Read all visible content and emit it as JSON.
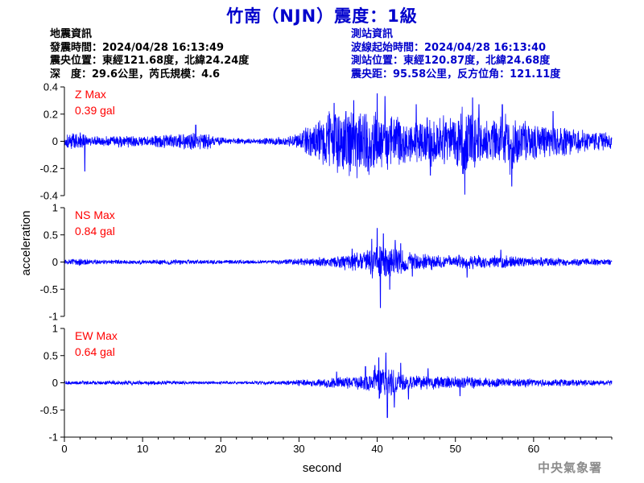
{
  "title": "竹南（NJN）震度：1級",
  "event_info": {
    "heading": "地震資訊",
    "origin_time": "發震時間：2024/04/28 16:13:49",
    "epicenter": "震央位置：東經121.68度，北緯24.24度",
    "depth_magnitude": "深　度：29.6公里，芮氏規模：4.6"
  },
  "station_info": {
    "heading": "測站資訊",
    "wave_start": "波線起始時間：2024/04/28 16:13:40",
    "location": "測站位置：東經120.87度，北緯24.68度",
    "distance_azimuth": "震央距：95.58公里，反方位角：121.11度"
  },
  "footer": "中央氣象署",
  "colors": {
    "title": "#0000cc",
    "trace": "#0000ff",
    "max_label": "#ff0000",
    "axis": "#000000"
  },
  "chart_data": {
    "type": "line",
    "xlabel": "second",
    "ylabel": "acceleration",
    "xlim": [
      0,
      70
    ],
    "xticks": [
      0,
      10,
      20,
      30,
      40,
      50,
      60
    ],
    "grid": false,
    "panels": [
      {
        "name": "Z",
        "max_label": "Z Max",
        "max_value": "0.39 gal",
        "ylim": [
          -0.4,
          0.4
        ],
        "yticks": [
          -0.4,
          -0.2,
          0,
          0.2,
          0.4
        ],
        "ytick_labels": [
          "-0.4",
          "-0.2",
          "0",
          "0.2",
          "0.4"
        ],
        "peak_amplitude": 0.39,
        "envelope": [
          [
            0,
            0.06
          ],
          [
            2,
            0.08
          ],
          [
            3,
            0.04
          ],
          [
            8,
            0.05
          ],
          [
            10,
            0.04
          ],
          [
            14,
            0.06
          ],
          [
            16,
            0.07
          ],
          [
            18,
            0.07
          ],
          [
            20,
            0.03
          ],
          [
            24,
            0.02
          ],
          [
            26,
            0.03
          ],
          [
            27,
            0.04
          ],
          [
            28,
            0.03
          ],
          [
            30,
            0.06
          ],
          [
            31,
            0.14
          ],
          [
            32,
            0.15
          ],
          [
            33,
            0.2
          ],
          [
            34,
            0.24
          ],
          [
            35,
            0.26
          ],
          [
            36,
            0.25
          ],
          [
            37,
            0.29
          ],
          [
            38,
            0.28
          ],
          [
            40,
            0.25
          ],
          [
            41,
            0.24
          ],
          [
            42,
            0.22
          ],
          [
            44,
            0.18
          ],
          [
            46,
            0.19
          ],
          [
            48,
            0.22
          ],
          [
            50,
            0.22
          ],
          [
            51,
            0.3
          ],
          [
            52,
            0.26
          ],
          [
            54,
            0.16
          ],
          [
            56,
            0.24
          ],
          [
            57,
            0.26
          ],
          [
            58,
            0.16
          ],
          [
            60,
            0.17
          ],
          [
            62,
            0.12
          ],
          [
            64,
            0.12
          ],
          [
            66,
            0.09
          ],
          [
            68,
            0.08
          ],
          [
            70,
            0.06
          ]
        ],
        "spikes": [
          [
            34.5,
            0.28
          ],
          [
            36.0,
            0.22
          ],
          [
            37.0,
            0.3
          ],
          [
            38.8,
            -0.22
          ],
          [
            40.0,
            0.35
          ],
          [
            41.0,
            0.33
          ],
          [
            45.0,
            0.27
          ],
          [
            46.8,
            -0.25
          ],
          [
            51.2,
            -0.39
          ],
          [
            52.2,
            0.32
          ],
          [
            53.0,
            0.27
          ],
          [
            56.0,
            0.27
          ],
          [
            57.2,
            -0.33
          ],
          [
            62.5,
            0.22
          ],
          [
            2.6,
            -0.22
          ],
          [
            16.8,
            0.12
          ]
        ]
      },
      {
        "name": "NS",
        "max_label": "NS Max",
        "max_value": "0.84 gal",
        "ylim": [
          -1,
          1
        ],
        "yticks": [
          -1,
          -0.5,
          0,
          0.5,
          1
        ],
        "ytick_labels": [
          "-1",
          "-0.5",
          "0",
          "0.5",
          "1"
        ],
        "peak_amplitude": 0.84,
        "envelope": [
          [
            0,
            0.05
          ],
          [
            2,
            0.07
          ],
          [
            3,
            0.05
          ],
          [
            10,
            0.04
          ],
          [
            14,
            0.06
          ],
          [
            16,
            0.04
          ],
          [
            26,
            0.04
          ],
          [
            28,
            0.05
          ],
          [
            30,
            0.07
          ],
          [
            33,
            0.1
          ],
          [
            35,
            0.13
          ],
          [
            37,
            0.18
          ],
          [
            38,
            0.22
          ],
          [
            39,
            0.3
          ],
          [
            40,
            0.38
          ],
          [
            41,
            0.34
          ],
          [
            42,
            0.3
          ],
          [
            44,
            0.22
          ],
          [
            46,
            0.18
          ],
          [
            48,
            0.14
          ],
          [
            50,
            0.14
          ],
          [
            52,
            0.16
          ],
          [
            54,
            0.12
          ],
          [
            56,
            0.13
          ],
          [
            58,
            0.1
          ],
          [
            60,
            0.1
          ],
          [
            64,
            0.08
          ],
          [
            70,
            0.06
          ]
        ],
        "spikes": [
          [
            40.0,
            0.62
          ],
          [
            40.4,
            -0.84
          ],
          [
            40.8,
            0.52
          ],
          [
            39.3,
            0.42
          ],
          [
            41.6,
            -0.5
          ],
          [
            36.8,
            0.24
          ],
          [
            43.0,
            0.34
          ],
          [
            44.5,
            -0.26
          ],
          [
            51.5,
            -0.28
          ],
          [
            55.8,
            0.22
          ],
          [
            42.3,
            0.4
          ]
        ]
      },
      {
        "name": "EW",
        "max_label": "EW Max",
        "max_value": "0.64 gal",
        "ylim": [
          -1,
          1
        ],
        "yticks": [
          -1,
          -0.5,
          0,
          0.5,
          1
        ],
        "ytick_labels": [
          "-1",
          "-0.5",
          "0",
          "0.5",
          "1"
        ],
        "peak_amplitude": 0.64,
        "envelope": [
          [
            0,
            0.04
          ],
          [
            10,
            0.04
          ],
          [
            20,
            0.03
          ],
          [
            28,
            0.04
          ],
          [
            30,
            0.06
          ],
          [
            33,
            0.09
          ],
          [
            36,
            0.12
          ],
          [
            38,
            0.15
          ],
          [
            39,
            0.22
          ],
          [
            40,
            0.3
          ],
          [
            41,
            0.33
          ],
          [
            42,
            0.28
          ],
          [
            43,
            0.22
          ],
          [
            44,
            0.16
          ],
          [
            46,
            0.15
          ],
          [
            48,
            0.13
          ],
          [
            50,
            0.12
          ],
          [
            52,
            0.13
          ],
          [
            54,
            0.1
          ],
          [
            58,
            0.09
          ],
          [
            62,
            0.08
          ],
          [
            66,
            0.07
          ],
          [
            70,
            0.05
          ]
        ],
        "spikes": [
          [
            41.3,
            -0.64
          ],
          [
            41.1,
            0.55
          ],
          [
            40.2,
            0.46
          ],
          [
            42.2,
            -0.45
          ],
          [
            39.7,
            0.32
          ],
          [
            43.0,
            0.36
          ],
          [
            44.0,
            -0.3
          ],
          [
            46.5,
            0.26
          ],
          [
            38.5,
            0.3
          ],
          [
            34.8,
            0.2
          ],
          [
            50.6,
            -0.24
          ]
        ]
      }
    ]
  }
}
